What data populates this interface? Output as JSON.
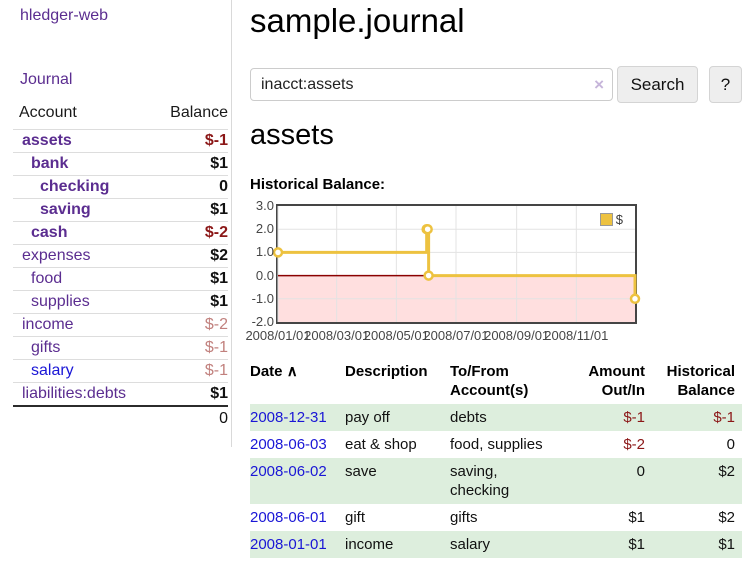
{
  "colors": {
    "accent_purple": "#5b2d90",
    "link_blue": "#1a16d6",
    "negative_strong": "#8b1717",
    "negative_muted": "#c1807d",
    "row_stripe_green": "#ddeedd",
    "chart_series_gold": "#edc240",
    "chart_negative_fill": "#ffdfdf",
    "chart_zero_line": "#8b0000",
    "chart_grid": "#e3e3e3",
    "chart_border": "#454545"
  },
  "icons": {
    "clear": "×",
    "sort_ascending": "∧"
  },
  "sidebar": {
    "brand": "hledger-web",
    "journal_label": "Journal",
    "accounts_table": {
      "headers": {
        "account": "Account",
        "balance": "Balance"
      },
      "rows": [
        {
          "name": "assets",
          "depth": 0,
          "bold": true,
          "balance": "$-1",
          "neg": "strong"
        },
        {
          "name": "bank",
          "depth": 1,
          "bold": true,
          "balance": "$1"
        },
        {
          "name": "checking",
          "depth": 2,
          "bold": true,
          "balance": "0"
        },
        {
          "name": "saving",
          "depth": 2,
          "bold": true,
          "balance": "$1"
        },
        {
          "name": "cash",
          "depth": 1,
          "bold": true,
          "balance": "$-2",
          "neg": "strong"
        },
        {
          "name": "expenses",
          "depth": 0,
          "bold": false,
          "balance": "$2"
        },
        {
          "name": "food",
          "depth": 1,
          "bold": false,
          "balance": "$1"
        },
        {
          "name": "supplies",
          "depth": 1,
          "bold": false,
          "balance": "$1"
        },
        {
          "name": "income",
          "depth": 0,
          "bold": false,
          "balance": "$-2",
          "neg": "muted"
        },
        {
          "name": "gifts",
          "depth": 1,
          "bold": false,
          "balance": "$-1",
          "neg": "muted"
        },
        {
          "name": "salary",
          "depth": 1,
          "bold": false,
          "balance": "$-1",
          "neg": "muted",
          "unvisited": true
        },
        {
          "name": "liabilities:debts",
          "depth": 0,
          "bold": false,
          "balance": "$1"
        }
      ],
      "total": "0"
    }
  },
  "header": {
    "title": "sample.journal"
  },
  "search": {
    "value": "inacct:assets",
    "button_label": "Search",
    "help_label": "?"
  },
  "main": {
    "account_heading": "assets",
    "chart_label": "Historical Balance:"
  },
  "chart_data": {
    "type": "line",
    "step": true,
    "title": "Historical Balance",
    "series": [
      {
        "name": "$",
        "color": "#edc240",
        "points": [
          [
            "2008-01-01",
            1
          ],
          [
            "2008-06-01",
            2
          ],
          [
            "2008-06-02",
            2
          ],
          [
            "2008-06-03",
            0
          ],
          [
            "2008-12-31",
            -1
          ]
        ]
      }
    ],
    "xlim": [
      "2008-01-01",
      "2008-12-31"
    ],
    "ylim": [
      -2,
      3
    ],
    "yticks": [
      "3.0",
      "2.0",
      "1.0",
      "0.0",
      "-1.0",
      "-2.0"
    ],
    "xtick_labels": [
      "2008/01/01",
      "2008/03/01",
      "2008/05/01",
      "2008/07/01",
      "2008/09/01",
      "2008/11/01"
    ],
    "grid": true,
    "legend": {
      "label": "$",
      "position": "top-right"
    },
    "negative_region_shaded": true
  },
  "register_table": {
    "headers": {
      "date": "Date",
      "description": "Description",
      "accounts": "To/From Account(s)",
      "amount": "Amount Out/In",
      "balance": "Historical Balance"
    },
    "rows": [
      {
        "date": "2008-12-31",
        "description": "pay off",
        "accounts": "debts",
        "amount": "$-1",
        "amount_neg": true,
        "balance": "$-1",
        "balance_neg": true
      },
      {
        "date": "2008-06-03",
        "description": "eat & shop",
        "accounts": "food, supplies",
        "amount": "$-2",
        "amount_neg": true,
        "balance": "0",
        "balance_neg": false
      },
      {
        "date": "2008-06-02",
        "description": "save",
        "accounts": "saving, checking",
        "amount": "0",
        "amount_neg": false,
        "balance": "$2",
        "balance_neg": false
      },
      {
        "date": "2008-06-01",
        "description": "gift",
        "accounts": "gifts",
        "amount": "$1",
        "amount_neg": false,
        "balance": "$2",
        "balance_neg": false
      },
      {
        "date": "2008-01-01",
        "description": "income",
        "accounts": "salary",
        "amount": "$1",
        "amount_neg": false,
        "balance": "$1",
        "balance_neg": false
      }
    ]
  }
}
